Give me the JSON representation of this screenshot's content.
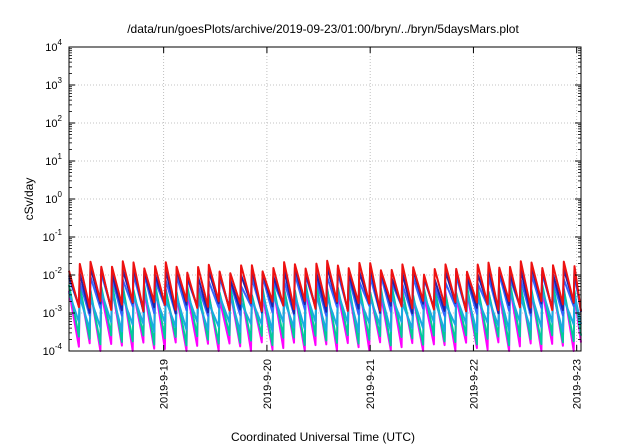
{
  "chart_data": {
    "type": "line",
    "title": "/data/run/goesPlots/archive/2019-09-23/01:00/bryn/../bryn/5daysMars.plot",
    "xlabel": "Coordinated Universal Time (UTC)",
    "ylabel": "cSv/day",
    "yscale": "log",
    "ylim": [
      0.0001,
      10000
    ],
    "y_ticks": [
      {
        "base": "10",
        "exp": "-4",
        "value": 0.0001
      },
      {
        "base": "10",
        "exp": "-3",
        "value": 0.001
      },
      {
        "base": "10",
        "exp": "-2",
        "value": 0.01
      },
      {
        "base": "10",
        "exp": "-1",
        "value": 0.1
      },
      {
        "base": "10",
        "exp": "0",
        "value": 1
      },
      {
        "base": "10",
        "exp": "1",
        "value": 10
      },
      {
        "base": "10",
        "exp": "2",
        "value": 100
      },
      {
        "base": "10",
        "exp": "3",
        "value": 1000
      },
      {
        "base": "10",
        "exp": "4",
        "value": 10000
      }
    ],
    "xlim": [
      "2019-09-18T02:00",
      "2019-09-23T01:00"
    ],
    "x_ticks": [
      {
        "label": "2019-9-19",
        "date": "2019-09-19T00:00"
      },
      {
        "label": "2019-9-20",
        "date": "2019-09-20T00:00"
      },
      {
        "label": "2019-9-21",
        "date": "2019-09-21T00:00"
      },
      {
        "label": "2019-9-22",
        "date": "2019-09-22T00:00"
      },
      {
        "label": "2019-9-23",
        "date": "2019-09-23T00:00"
      }
    ],
    "grid": true,
    "sawtooth_period_hours": 2.5,
    "series": [
      {
        "color": "#ff00ff",
        "peak": 0.0038,
        "trough": 0.00013
      },
      {
        "color": "#00cc99",
        "peak": 0.0045,
        "trough": 0.0002
      },
      {
        "color": "#1aaae0",
        "peak": 0.0028,
        "trough": 0.00045
      },
      {
        "color": "#3366ff",
        "peak": 0.008,
        "trough": 0.0012
      },
      {
        "color": "#2222aa",
        "peak": 0.012,
        "trough": 0.0014
      },
      {
        "color": "#ee1111",
        "peak": 0.017,
        "trough": 0.0016
      }
    ]
  }
}
